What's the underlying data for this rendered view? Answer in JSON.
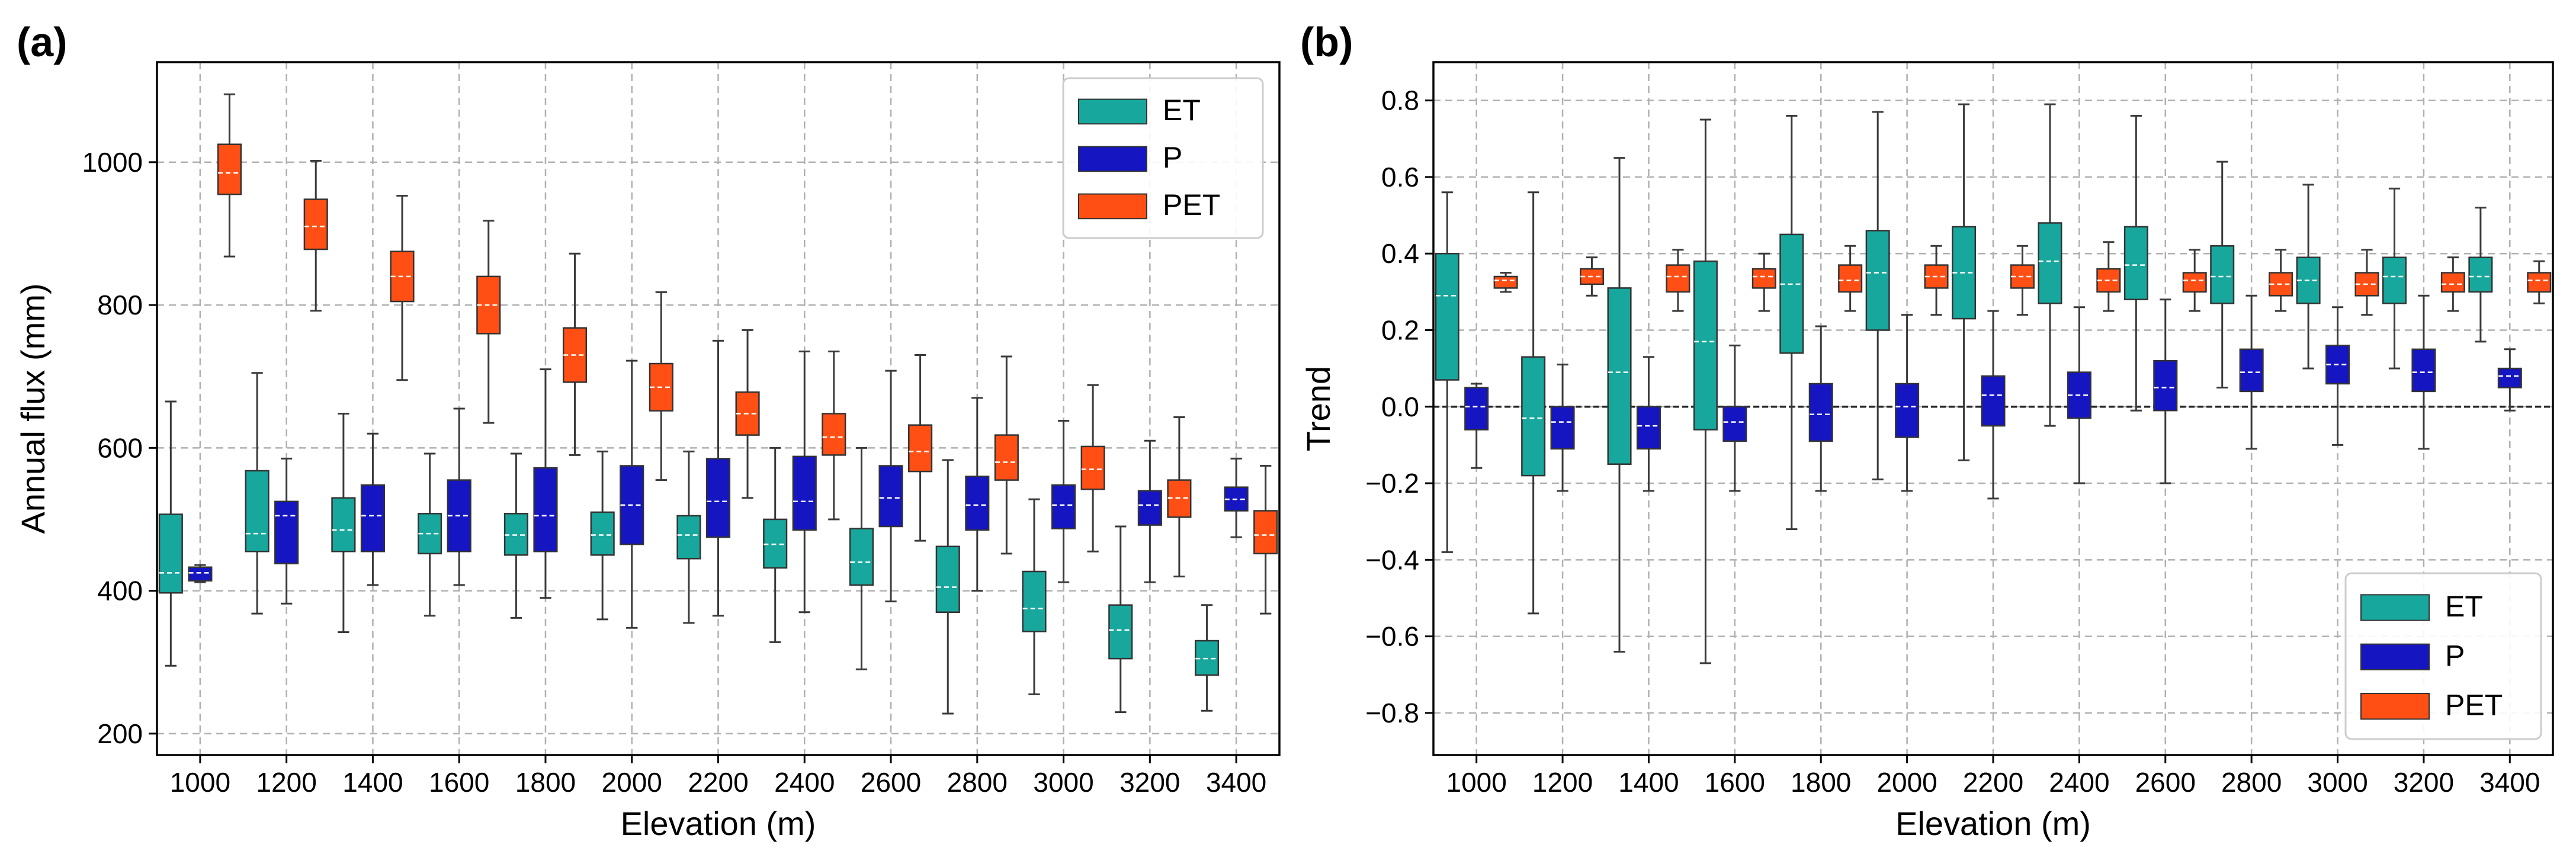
{
  "colors": {
    "ET": "#17a79c",
    "P": "#1515c2",
    "PET": "#ff4f14"
  },
  "chart_data": [
    {
      "type": "box",
      "panel_label": "(a)",
      "title": "",
      "xlabel": "Elevation (m)",
      "ylabel": "Annual flux (mm)",
      "ylim": [
        170,
        1140
      ],
      "yticks": [
        200,
        400,
        600,
        800,
        1000
      ],
      "ytick_labels": [
        "200",
        "400",
        "600",
        "800",
        "1000"
      ],
      "categories": [
        "1000",
        "1200",
        "1400",
        "1600",
        "1800",
        "2000",
        "2200",
        "2400",
        "2600",
        "2800",
        "3000",
        "3200",
        "3400"
      ],
      "legend": [
        "ET",
        "P",
        "PET"
      ],
      "legend_position": "top-right",
      "zero_line": false,
      "series": [
        {
          "name": "ET",
          "boxes": [
            {
              "min": 295,
              "q1": 397,
              "median": 425,
              "q3": 507,
              "max": 665
            },
            {
              "min": 368,
              "q1": 455,
              "median": 480,
              "q3": 568,
              "max": 705
            },
            {
              "min": 342,
              "q1": 455,
              "median": 485,
              "q3": 530,
              "max": 648
            },
            {
              "min": 365,
              "q1": 452,
              "median": 480,
              "q3": 508,
              "max": 592
            },
            {
              "min": 362,
              "q1": 450,
              "median": 478,
              "q3": 508,
              "max": 592
            },
            {
              "min": 360,
              "q1": 450,
              "median": 478,
              "q3": 510,
              "max": 595
            },
            {
              "min": 355,
              "q1": 445,
              "median": 478,
              "q3": 505,
              "max": 595
            },
            {
              "min": 328,
              "q1": 432,
              "median": 465,
              "q3": 500,
              "max": 600
            },
            {
              "min": 290,
              "q1": 408,
              "median": 440,
              "q3": 487,
              "max": 600
            },
            {
              "min": 228,
              "q1": 370,
              "median": 405,
              "q3": 462,
              "max": 583
            },
            {
              "min": 255,
              "q1": 343,
              "median": 375,
              "q3": 427,
              "max": 528
            },
            {
              "min": 230,
              "q1": 305,
              "median": 345,
              "q3": 380,
              "max": 490
            },
            {
              "min": 232,
              "q1": 282,
              "median": 305,
              "q3": 330,
              "max": 380
            }
          ]
        },
        {
          "name": "P",
          "boxes": [
            {
              "min": 412,
              "q1": 414,
              "median": 425,
              "q3": 433,
              "max": 436
            },
            {
              "min": 382,
              "q1": 438,
              "median": 505,
              "q3": 525,
              "max": 585
            },
            {
              "min": 408,
              "q1": 455,
              "median": 505,
              "q3": 548,
              "max": 620
            },
            {
              "min": 408,
              "q1": 455,
              "median": 505,
              "q3": 555,
              "max": 655
            },
            {
              "min": 390,
              "q1": 455,
              "median": 505,
              "q3": 572,
              "max": 710
            },
            {
              "min": 348,
              "q1": 465,
              "median": 520,
              "q3": 575,
              "max": 722
            },
            {
              "min": 365,
              "q1": 475,
              "median": 525,
              "q3": 585,
              "max": 750
            },
            {
              "min": 370,
              "q1": 485,
              "median": 525,
              "q3": 588,
              "max": 735
            },
            {
              "min": 385,
              "q1": 490,
              "median": 530,
              "q3": 575,
              "max": 708
            },
            {
              "min": 400,
              "q1": 485,
              "median": 520,
              "q3": 560,
              "max": 670
            },
            {
              "min": 412,
              "q1": 487,
              "median": 520,
              "q3": 548,
              "max": 638
            },
            {
              "min": 412,
              "q1": 492,
              "median": 520,
              "q3": 540,
              "max": 610
            },
            {
              "min": 475,
              "q1": 512,
              "median": 528,
              "q3": 545,
              "max": 585
            }
          ]
        },
        {
          "name": "PET",
          "boxes": [
            {
              "min": 868,
              "q1": 955,
              "median": 985,
              "q3": 1025,
              "max": 1095
            },
            {
              "min": 792,
              "q1": 878,
              "median": 910,
              "q3": 948,
              "max": 1002
            },
            {
              "min": 695,
              "q1": 805,
              "median": 840,
              "q3": 875,
              "max": 953
            },
            {
              "min": 635,
              "q1": 760,
              "median": 800,
              "q3": 840,
              "max": 918
            },
            {
              "min": 590,
              "q1": 692,
              "median": 730,
              "q3": 768,
              "max": 872
            },
            {
              "min": 555,
              "q1": 652,
              "median": 685,
              "q3": 718,
              "max": 818
            },
            {
              "min": 530,
              "q1": 618,
              "median": 648,
              "q3": 678,
              "max": 765
            },
            {
              "min": 500,
              "q1": 590,
              "median": 615,
              "q3": 648,
              "max": 735
            },
            {
              "min": 470,
              "q1": 567,
              "median": 595,
              "q3": 632,
              "max": 730
            },
            {
              "min": 452,
              "q1": 555,
              "median": 580,
              "q3": 618,
              "max": 728
            },
            {
              "min": 455,
              "q1": 542,
              "median": 570,
              "q3": 602,
              "max": 688
            },
            {
              "min": 420,
              "q1": 503,
              "median": 530,
              "q3": 555,
              "max": 643
            },
            {
              "min": 368,
              "q1": 452,
              "median": 478,
              "q3": 512,
              "max": 575
            }
          ]
        }
      ]
    },
    {
      "type": "box",
      "panel_label": "(b)",
      "title": "",
      "xlabel": "Elevation (m)",
      "ylabel": "Trend",
      "ylim": [
        -0.91,
        0.9
      ],
      "yticks": [
        -0.8,
        -0.6,
        -0.4,
        -0.2,
        0.0,
        0.2,
        0.4,
        0.6,
        0.8
      ],
      "ytick_labels": [
        "−0.8",
        "−0.6",
        "−0.4",
        "−0.2",
        "0.0",
        "0.2",
        "0.4",
        "0.6",
        "0.8"
      ],
      "categories": [
        "1000",
        "1200",
        "1400",
        "1600",
        "1800",
        "2000",
        "2200",
        "2400",
        "2600",
        "2800",
        "3000",
        "3200",
        "3400"
      ],
      "legend": [
        "ET",
        "P",
        "PET"
      ],
      "legend_position": "bottom-right",
      "zero_line": true,
      "series": [
        {
          "name": "ET",
          "boxes": [
            {
              "min": -0.38,
              "q1": 0.07,
              "median": 0.29,
              "q3": 0.4,
              "max": 0.56
            },
            {
              "min": -0.54,
              "q1": -0.18,
              "median": -0.03,
              "q3": 0.13,
              "max": 0.56
            },
            {
              "min": -0.64,
              "q1": -0.15,
              "median": 0.09,
              "q3": 0.31,
              "max": 0.65
            },
            {
              "min": -0.67,
              "q1": -0.06,
              "median": 0.17,
              "q3": 0.38,
              "max": 0.75
            },
            {
              "min": -0.32,
              "q1": 0.14,
              "median": 0.32,
              "q3": 0.45,
              "max": 0.76
            },
            {
              "min": -0.19,
              "q1": 0.2,
              "median": 0.35,
              "q3": 0.46,
              "max": 0.77
            },
            {
              "min": -0.14,
              "q1": 0.23,
              "median": 0.35,
              "q3": 0.47,
              "max": 0.79
            },
            {
              "min": -0.05,
              "q1": 0.27,
              "median": 0.38,
              "q3": 0.48,
              "max": 0.79
            },
            {
              "min": -0.01,
              "q1": 0.28,
              "median": 0.37,
              "q3": 0.47,
              "max": 0.76
            },
            {
              "min": 0.05,
              "q1": 0.27,
              "median": 0.34,
              "q3": 0.42,
              "max": 0.64
            },
            {
              "min": 0.1,
              "q1": 0.27,
              "median": 0.33,
              "q3": 0.39,
              "max": 0.58
            },
            {
              "min": 0.1,
              "q1": 0.27,
              "median": 0.34,
              "q3": 0.39,
              "max": 0.57
            },
            {
              "min": 0.17,
              "q1": 0.3,
              "median": 0.34,
              "q3": 0.39,
              "max": 0.52
            }
          ]
        },
        {
          "name": "P",
          "boxes": [
            {
              "min": -0.16,
              "q1": -0.06,
              "median": 0.0,
              "q3": 0.05,
              "max": 0.06
            },
            {
              "min": -0.22,
              "q1": -0.11,
              "median": -0.04,
              "q3": 0.0,
              "max": 0.11
            },
            {
              "min": -0.22,
              "q1": -0.11,
              "median": -0.05,
              "q3": 0.0,
              "max": 0.13
            },
            {
              "min": -0.22,
              "q1": -0.09,
              "median": -0.04,
              "q3": 0.0,
              "max": 0.16
            },
            {
              "min": -0.22,
              "q1": -0.09,
              "median": -0.02,
              "q3": 0.06,
              "max": 0.21
            },
            {
              "min": -0.22,
              "q1": -0.08,
              "median": 0.0,
              "q3": 0.06,
              "max": 0.24
            },
            {
              "min": -0.24,
              "q1": -0.05,
              "median": 0.03,
              "q3": 0.08,
              "max": 0.25
            },
            {
              "min": -0.2,
              "q1": -0.03,
              "median": 0.03,
              "q3": 0.09,
              "max": 0.26
            },
            {
              "min": -0.2,
              "q1": -0.01,
              "median": 0.05,
              "q3": 0.12,
              "max": 0.28
            },
            {
              "min": -0.11,
              "q1": 0.04,
              "median": 0.09,
              "q3": 0.15,
              "max": 0.29
            },
            {
              "min": -0.1,
              "q1": 0.06,
              "median": 0.11,
              "q3": 0.16,
              "max": 0.26
            },
            {
              "min": -0.11,
              "q1": 0.04,
              "median": 0.09,
              "q3": 0.15,
              "max": 0.29
            },
            {
              "min": -0.01,
              "q1": 0.05,
              "median": 0.08,
              "q3": 0.1,
              "max": 0.15
            }
          ]
        },
        {
          "name": "PET",
          "boxes": [
            {
              "min": 0.3,
              "q1": 0.31,
              "median": 0.33,
              "q3": 0.34,
              "max": 0.35
            },
            {
              "min": 0.29,
              "q1": 0.32,
              "median": 0.34,
              "q3": 0.36,
              "max": 0.39
            },
            {
              "min": 0.25,
              "q1": 0.3,
              "median": 0.34,
              "q3": 0.37,
              "max": 0.41
            },
            {
              "min": 0.25,
              "q1": 0.31,
              "median": 0.34,
              "q3": 0.36,
              "max": 0.4
            },
            {
              "min": 0.25,
              "q1": 0.3,
              "median": 0.33,
              "q3": 0.37,
              "max": 0.42
            },
            {
              "min": 0.24,
              "q1": 0.31,
              "median": 0.34,
              "q3": 0.37,
              "max": 0.42
            },
            {
              "min": 0.24,
              "q1": 0.31,
              "median": 0.34,
              "q3": 0.37,
              "max": 0.42
            },
            {
              "min": 0.25,
              "q1": 0.3,
              "median": 0.33,
              "q3": 0.36,
              "max": 0.43
            },
            {
              "min": 0.25,
              "q1": 0.3,
              "median": 0.33,
              "q3": 0.35,
              "max": 0.41
            },
            {
              "min": 0.25,
              "q1": 0.29,
              "median": 0.32,
              "q3": 0.35,
              "max": 0.41
            },
            {
              "min": 0.24,
              "q1": 0.29,
              "median": 0.32,
              "q3": 0.35,
              "max": 0.41
            },
            {
              "min": 0.25,
              "q1": 0.3,
              "median": 0.32,
              "q3": 0.35,
              "max": 0.39
            },
            {
              "min": 0.27,
              "q1": 0.3,
              "median": 0.33,
              "q3": 0.35,
              "max": 0.38
            }
          ]
        }
      ]
    }
  ]
}
